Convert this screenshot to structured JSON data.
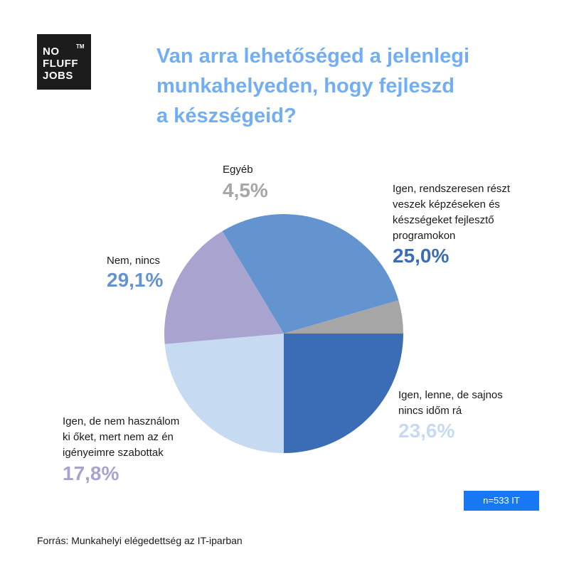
{
  "logo": {
    "lines": [
      "NO",
      "FLUFF",
      "JOBS"
    ],
    "tm": "TM"
  },
  "title": [
    "Van arra lehetőséged a jelenlegi",
    "munkahelyeden, hogy fejleszd",
    "a készségeid?"
  ],
  "chart_data": {
    "type": "pie",
    "start_angle_deg": 0,
    "direction": "clockwise",
    "slices": [
      {
        "label_lines": [
          "Igen, rendszeresen részt",
          "veszek képzéseken és",
          "készségeket fejlesztő",
          "programokon"
        ],
        "value": 25.0,
        "pct_text": "25,0%",
        "color": "#3a6db5",
        "pct_color": "#3a6db5"
      },
      {
        "label_lines": [
          "Igen, lenne, de sajnos",
          "nincs időm rá"
        ],
        "value": 23.6,
        "pct_text": "23,6%",
        "color": "#c6dbf2",
        "pct_color": "#c6dbf2"
      },
      {
        "label_lines": [
          "Igen, de nem használom",
          "ki őket, mert nem az én",
          "igényeimre szabottak"
        ],
        "value": 17.8,
        "pct_text": "17,8%",
        "color": "#a9a3cf",
        "pct_color": "#a9a3cf"
      },
      {
        "label_lines": [
          "Nem, nincs"
        ],
        "value": 29.1,
        "pct_text": "29,1%",
        "color": "#6494cf",
        "pct_color": "#6494cf"
      },
      {
        "label_lines": [
          "Egyéb"
        ],
        "value": 4.5,
        "pct_text": "4,5%",
        "color": "#a6a6a6",
        "pct_color": "#a6a6a6"
      }
    ]
  },
  "sample_badge": "n=533 IT",
  "source": "Forrás: Munkahelyi elégedettség az IT-iparban"
}
